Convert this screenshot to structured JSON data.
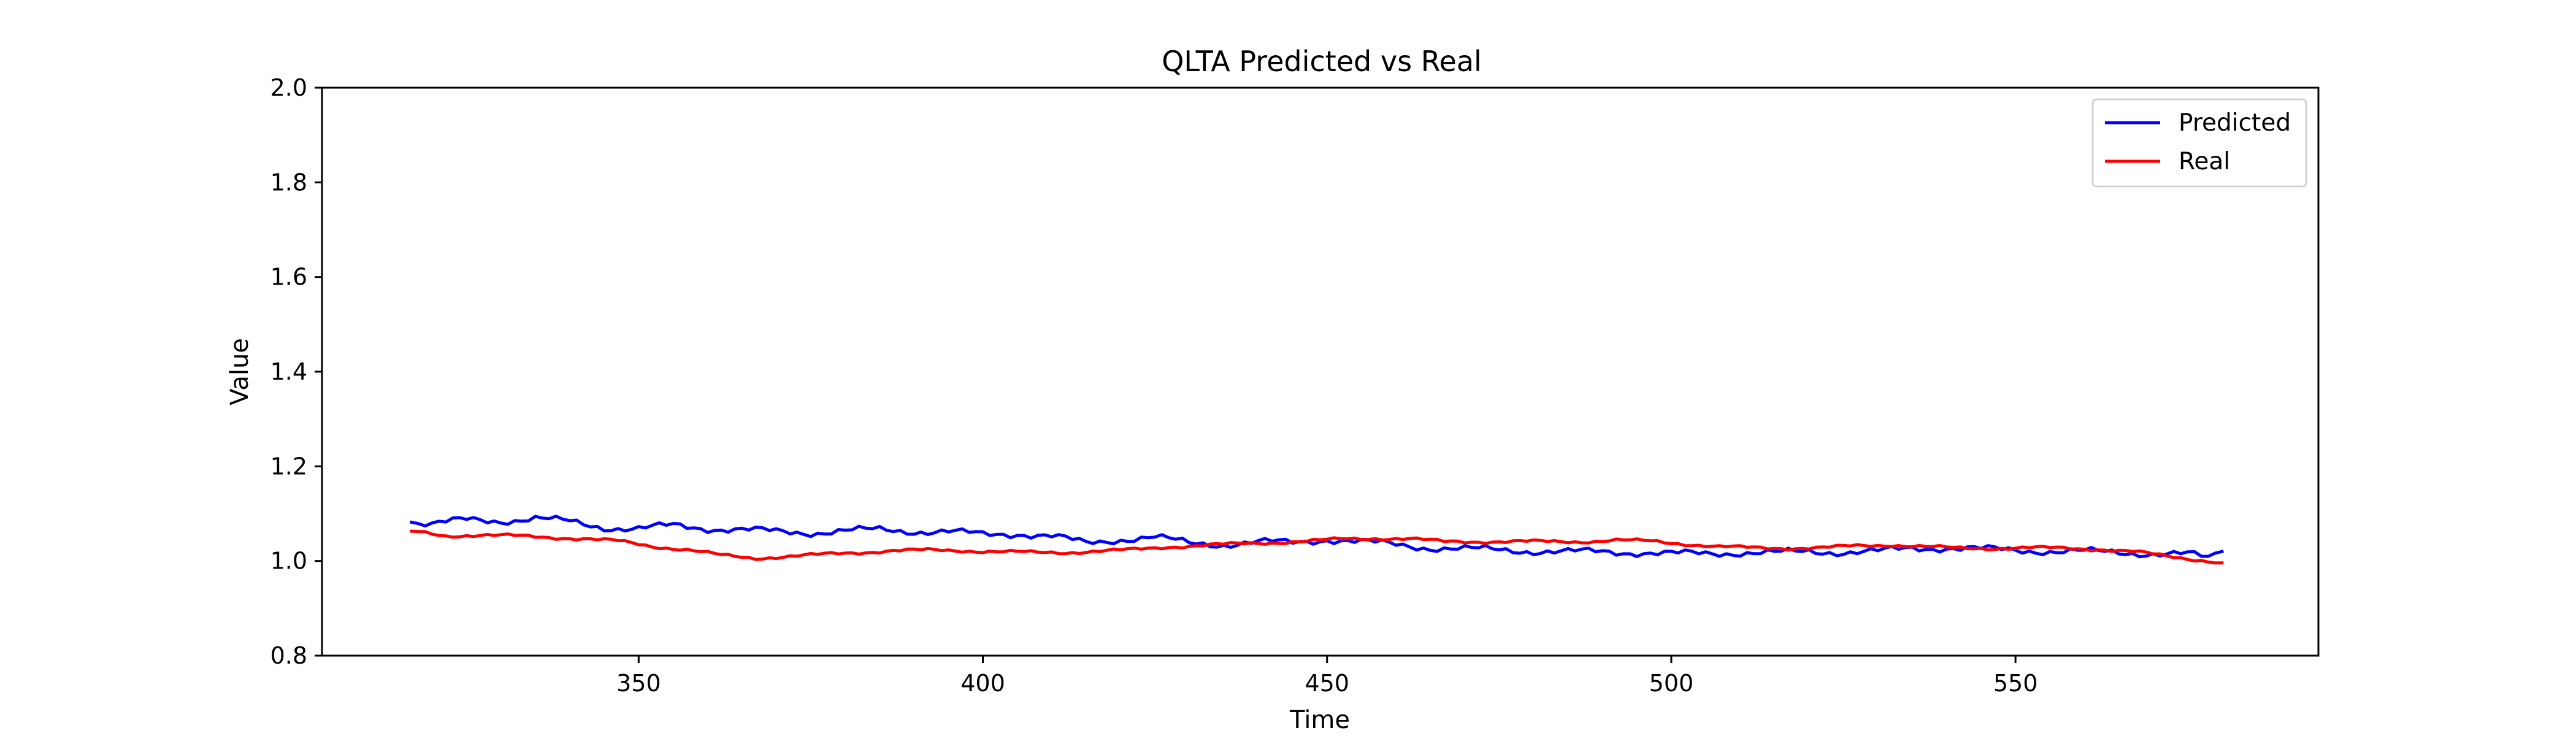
{
  "chart_data": {
    "type": "line",
    "title": "QLTA Predicted vs Real",
    "xlabel": "Time",
    "ylabel": "Value",
    "xlim": [
      304,
      594
    ],
    "ylim": [
      0.8,
      2.0
    ],
    "xticks": [
      350,
      400,
      450,
      500,
      550
    ],
    "yticks": [
      0.8,
      1.0,
      1.2,
      1.4,
      1.6,
      1.8,
      2.0
    ],
    "xtick_labels": [
      "350",
      "400",
      "450",
      "500",
      "550"
    ],
    "ytick_labels": [
      "0.8",
      "1.0",
      "1.2",
      "1.4",
      "1.6",
      "1.8",
      "2.0"
    ],
    "grid": false,
    "legend": "top-right",
    "x_start": 317,
    "x_end": 580,
    "series": [
      {
        "name": "Predicted",
        "color": "#0000ff",
        "anchors": [
          [
            317,
            1.082
          ],
          [
            320,
            1.078
          ],
          [
            325,
            1.087
          ],
          [
            330,
            1.085
          ],
          [
            335,
            1.09
          ],
          [
            340,
            1.083
          ],
          [
            345,
            1.071
          ],
          [
            350,
            1.068
          ],
          [
            355,
            1.075
          ],
          [
            360,
            1.069
          ],
          [
            365,
            1.066
          ],
          [
            370,
            1.062
          ],
          [
            375,
            1.06
          ],
          [
            380,
            1.064
          ],
          [
            385,
            1.066
          ],
          [
            390,
            1.063
          ],
          [
            395,
            1.062
          ],
          [
            400,
            1.056
          ],
          [
            405,
            1.058
          ],
          [
            410,
            1.052
          ],
          [
            415,
            1.038
          ],
          [
            420,
            1.046
          ],
          [
            425,
            1.05
          ],
          [
            430,
            1.038
          ],
          [
            435,
            1.035
          ],
          [
            440,
            1.04
          ],
          [
            445,
            1.039
          ],
          [
            450,
            1.046
          ],
          [
            455,
            1.04
          ],
          [
            460,
            1.035
          ],
          [
            465,
            1.028
          ],
          [
            470,
            1.025
          ],
          [
            475,
            1.024
          ],
          [
            480,
            1.021
          ],
          [
            485,
            1.019
          ],
          [
            490,
            1.02
          ],
          [
            495,
            1.018
          ],
          [
            500,
            1.015
          ],
          [
            505,
            1.016
          ],
          [
            510,
            1.018
          ],
          [
            515,
            1.017
          ],
          [
            520,
            1.02
          ],
          [
            525,
            1.019
          ],
          [
            530,
            1.02
          ],
          [
            535,
            1.027
          ],
          [
            540,
            1.028
          ],
          [
            545,
            1.025
          ],
          [
            550,
            1.023
          ],
          [
            555,
            1.021
          ],
          [
            560,
            1.02
          ],
          [
            565,
            1.018
          ],
          [
            570,
            1.016
          ],
          [
            575,
            1.014
          ],
          [
            578,
            1.006
          ],
          [
            580,
            1.02
          ]
        ],
        "noise": 0.009
      },
      {
        "name": "Real",
        "color": "#ff0000",
        "anchors": [
          [
            317,
            1.063
          ],
          [
            322,
            1.053
          ],
          [
            327,
            1.055
          ],
          [
            332,
            1.053
          ],
          [
            337,
            1.05
          ],
          [
            342,
            1.047
          ],
          [
            347,
            1.042
          ],
          [
            352,
            1.031
          ],
          [
            357,
            1.024
          ],
          [
            362,
            1.012
          ],
          [
            367,
            1.006
          ],
          [
            372,
            1.01
          ],
          [
            377,
            1.014
          ],
          [
            382,
            1.018
          ],
          [
            387,
            1.022
          ],
          [
            392,
            1.023
          ],
          [
            397,
            1.022
          ],
          [
            402,
            1.02
          ],
          [
            407,
            1.018
          ],
          [
            412,
            1.018
          ],
          [
            417,
            1.021
          ],
          [
            422,
            1.024
          ],
          [
            427,
            1.03
          ],
          [
            432,
            1.033
          ],
          [
            437,
            1.036
          ],
          [
            442,
            1.039
          ],
          [
            447,
            1.042
          ],
          [
            452,
            1.046
          ],
          [
            457,
            1.048
          ],
          [
            462,
            1.047
          ],
          [
            467,
            1.041
          ],
          [
            472,
            1.041
          ],
          [
            477,
            1.041
          ],
          [
            482,
            1.041
          ],
          [
            487,
            1.041
          ],
          [
            492,
            1.044
          ],
          [
            497,
            1.042
          ],
          [
            502,
            1.036
          ],
          [
            507,
            1.03
          ],
          [
            512,
            1.028
          ],
          [
            517,
            1.027
          ],
          [
            522,
            1.028
          ],
          [
            527,
            1.032
          ],
          [
            532,
            1.034
          ],
          [
            537,
            1.03
          ],
          [
            542,
            1.027
          ],
          [
            547,
            1.027
          ],
          [
            552,
            1.028
          ],
          [
            557,
            1.027
          ],
          [
            562,
            1.025
          ],
          [
            567,
            1.02
          ],
          [
            572,
            1.01
          ],
          [
            577,
            1.002
          ],
          [
            580,
            0.996
          ]
        ],
        "noise": 0.004
      }
    ]
  }
}
